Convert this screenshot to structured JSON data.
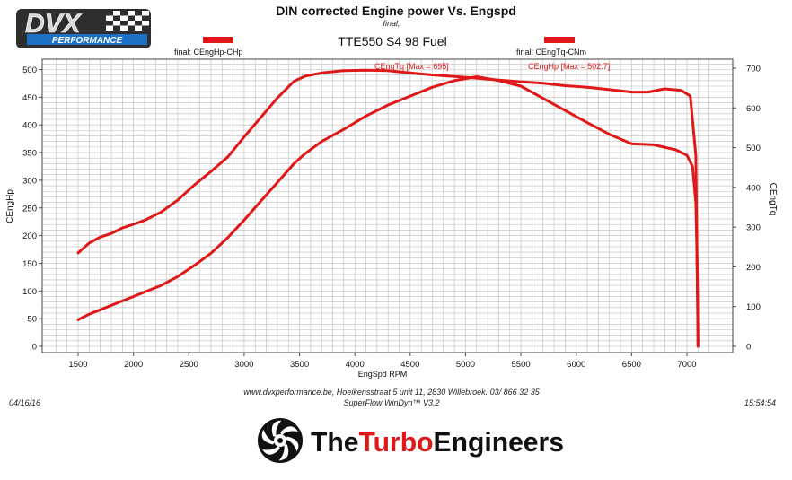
{
  "header": {
    "title": "DIN corrected Engine power Vs. Engspd",
    "subtitle": "final,",
    "run_label": "TTE550 S4 98 Fuel",
    "date": "04/16/16",
    "time": "15:54:54"
  },
  "brand": {
    "dvx_text": "DVX",
    "dvx_sub": "PERFORMANCE",
    "tte_pre": "The",
    "tte_mid": "Turbo",
    "tte_post": "Engineers"
  },
  "footer": {
    "line1": "www.dvxperformance.be, Hoeikensstraat 5 unit 11, 2830 Willebroek. 03/ 866 32 35",
    "line2": "SuperFlow WinDyn™ V3.2"
  },
  "colors": {
    "curve": "#e01818",
    "grid": "#bdbdbd",
    "axis": "#444444"
  },
  "chart_data": {
    "type": "line",
    "title": "DIN corrected Engine power Vs. Engspd",
    "xlabel": "EngSpd RPM",
    "ylabel_left": "CEngHp",
    "ylabel_right": "CEngTq",
    "xlim": [
      1250,
      7300
    ],
    "ylim_left": [
      0,
      520
    ],
    "ylim_right": [
      0,
      720
    ],
    "x_ticks": [
      1500,
      2000,
      2500,
      3000,
      3500,
      4000,
      4500,
      5000,
      5500,
      6000,
      6500,
      7000
    ],
    "y_left_ticks": [
      0,
      50,
      100,
      150,
      200,
      250,
      300,
      350,
      400,
      450,
      500
    ],
    "y_right_ticks": [
      0,
      100,
      200,
      300,
      400,
      500,
      600,
      700
    ],
    "grid": true,
    "legend": [
      {
        "label": "final: CEngHp-CHp",
        "position": "top-left"
      },
      {
        "label": "final: CEngTq-CNm",
        "position": "top-right"
      }
    ],
    "annotations": [
      {
        "text": "CEngTq [Max = 695]",
        "x": 4200,
        "axis": "left",
        "y": 508
      },
      {
        "text": "CEngHp [Max = 502.7]",
        "x": 5600,
        "axis": "left",
        "y": 508
      }
    ],
    "series": [
      {
        "name": "CEngHp",
        "axis": "left",
        "x": [
          1500,
          1600,
          1750,
          1900,
          2000,
          2100,
          2250,
          2400,
          2550,
          2700,
          2850,
          3000,
          3150,
          3300,
          3450,
          3550,
          3700,
          3900,
          4100,
          4300,
          4500,
          4700,
          4900,
          5100,
          5300,
          5500,
          5700,
          5900,
          6100,
          6300,
          6500,
          6700,
          6900,
          7000,
          7050,
          7080,
          7095,
          7100
        ],
        "y": [
          48,
          58,
          70,
          82,
          90,
          98,
          110,
          126,
          146,
          168,
          196,
          228,
          262,
          296,
          330,
          348,
          370,
          392,
          416,
          436,
          452,
          468,
          480,
          487,
          480,
          470,
          448,
          426,
          404,
          383,
          366,
          364,
          355,
          345,
          325,
          260,
          120,
          0
        ]
      },
      {
        "name": "CEngTq",
        "axis": "right",
        "x": [
          1500,
          1600,
          1700,
          1800,
          1900,
          2000,
          2100,
          2250,
          2400,
          2550,
          2700,
          2850,
          3000,
          3150,
          3300,
          3450,
          3550,
          3700,
          3900,
          4100,
          4300,
          4500,
          4700,
          4900,
          5100,
          5300,
          5500,
          5700,
          5900,
          6100,
          6300,
          6500,
          6650,
          6800,
          6950,
          7030,
          7080,
          7100
        ],
        "y": [
          235,
          260,
          275,
          284,
          298,
          307,
          317,
          338,
          368,
          406,
          440,
          476,
          527,
          576,
          625,
          667,
          680,
          688,
          694,
          695,
          694,
          688,
          683,
          679,
          675,
          670,
          666,
          662,
          656,
          652,
          646,
          640,
          640,
          648,
          644,
          630,
          480,
          0
        ]
      }
    ]
  }
}
